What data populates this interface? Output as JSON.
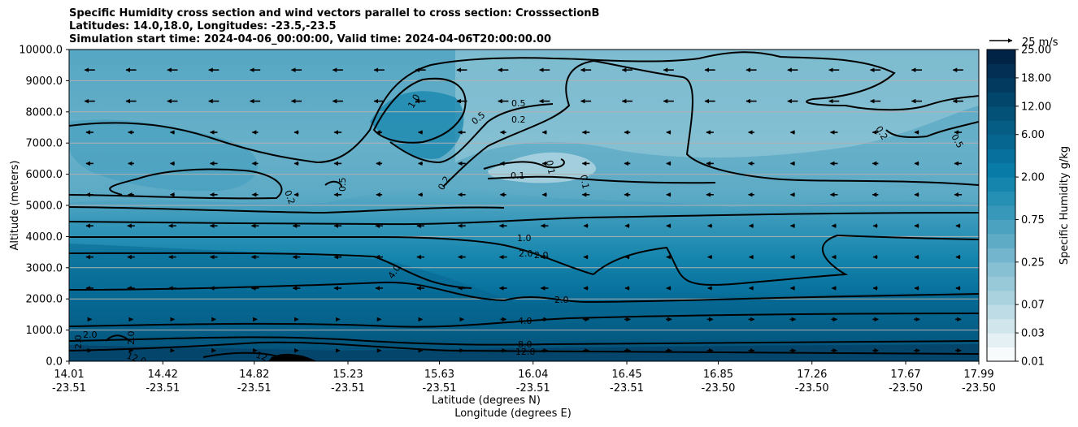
{
  "title_lines": [
    "Specific Humidity cross section and wind vectors parallel to cross section: CrosssectionB",
    "Latitudes: 14.0,18.0, Longitudes: -23.5,-23.5",
    "Simulation start time: 2024-04-06_00:00:00, Valid time: 2024-04-06T20:00:00.00"
  ],
  "chart_data": {
    "type": "heatmap",
    "subtype": "vertical cross section with filled contours, contour lines and wind quiver",
    "ylabel": "Altitude (meters)",
    "xlabel_line1": "Latitude (degrees N)",
    "xlabel_line2": "Longitude (degrees E)",
    "ylim": [
      0,
      10000
    ],
    "y_ticks": [
      "0.0",
      "1000.0",
      "2000.0",
      "3000.0",
      "4000.0",
      "5000.0",
      "6000.0",
      "7000.0",
      "8000.0",
      "9000.0",
      "10000.0"
    ],
    "x_ticks_lat": [
      "14.01",
      "14.42",
      "14.82",
      "15.23",
      "15.63",
      "16.04",
      "16.45",
      "16.85",
      "17.26",
      "17.67",
      "17.99"
    ],
    "x_ticks_lon": [
      "-23.51",
      "-23.51",
      "-23.51",
      "-23.51",
      "-23.51",
      "-23.51",
      "-23.51",
      "-23.50",
      "-23.50",
      "-23.50",
      "-23.50"
    ],
    "grid": "horizontal",
    "colorbar": {
      "label": "Specific Humidity g/kg",
      "levels": [
        0.01,
        0.02,
        0.03,
        0.05,
        0.07,
        0.1,
        0.15,
        0.25,
        0.35,
        0.5,
        0.75,
        1.0,
        1.5,
        2.0,
        3.0,
        4.0,
        6.0,
        8.0,
        12.0,
        15.0,
        18.0,
        20.0,
        25.0
      ],
      "tick_labels": [
        "0.01",
        "0.03",
        "0.07",
        "0.25",
        "0.75",
        "2.00",
        "6.00",
        "12.00",
        "18.00",
        "25.00"
      ],
      "colors": [
        "#f7fbfc",
        "#e4f0f4",
        "#d0e6ec",
        "#bddce5",
        "#aad2de",
        "#98c9d8",
        "#86c0d2",
        "#72b5cc",
        "#5eabc6",
        "#4ba1c0",
        "#3898ba",
        "#268fb4",
        "#1585ad",
        "#087ba6",
        "#07709c",
        "#066690",
        "#055c84",
        "#045178",
        "#03466b",
        "#023a5f",
        "#022f53",
        "#012446"
      ]
    },
    "quiver_key": {
      "label": "25 m/s",
      "value": 25
    },
    "contour_lines": [
      {
        "level": 0.1,
        "label": "0.1"
      },
      {
        "level": 0.2,
        "label": "0.2"
      },
      {
        "level": 0.5,
        "label": "0.5"
      },
      {
        "level": 1.0,
        "label": "1.0"
      },
      {
        "level": 2.0,
        "label": "2.0"
      },
      {
        "level": 4.0,
        "label": "4.0"
      },
      {
        "level": 8.0,
        "label": "8.0"
      },
      {
        "level": 12.0,
        "label": "12.0"
      }
    ],
    "contour_labels_visible": [
      "1.0",
      "0.5",
      "0.2",
      "0.1",
      "0.1",
      "0.1",
      "0.2",
      "0.5",
      "0.5",
      "0.2",
      "0.2",
      "0.5",
      "1.0",
      "2.0",
      "2.0",
      "4.0",
      "2.0",
      "4.0",
      "8.0",
      "12.0",
      "12.0",
      "12.0",
      "2.0",
      "2.0",
      "2.0"
    ],
    "profile_note": "humidity decreases with altitude: about 12-20 g/kg near the surface, about 4 g/kg at 1500 m, about 1-2 g/kg near 3000-4000 m, 0.1-0.5 g/kg above 5000 m, with a moist tongue near 15.5 N at 7000-8000 m"
  }
}
